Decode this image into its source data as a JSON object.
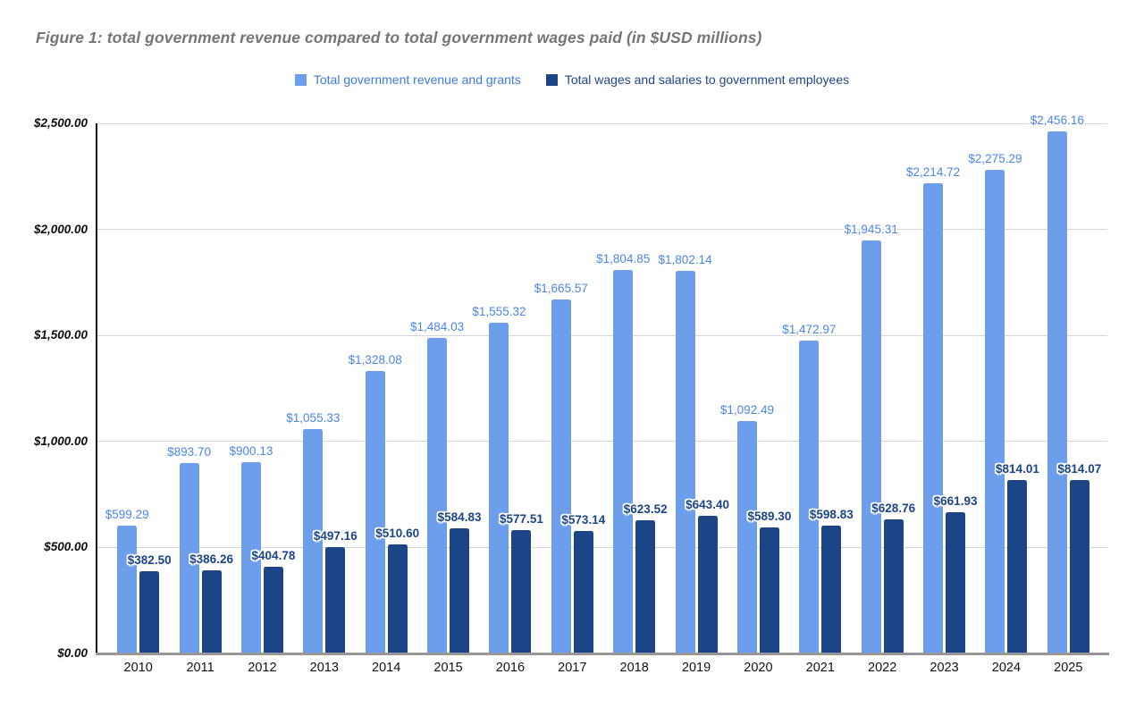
{
  "figure": {
    "title": "Figure 1: total government revenue compared to total government wages paid (in $USD millions)"
  },
  "legend": [
    {
      "label": "Total government revenue and grants",
      "swatch": "#6d9eeb",
      "text_color": "#3d7ae0"
    },
    {
      "label": "Total wages and salaries to government employees",
      "swatch": "#1c4587",
      "text_color": "#1c4587"
    }
  ],
  "colors": {
    "grid": "#d6d6d6",
    "y_axis_line": "#0d0d0d",
    "x_axis_line": "#979797",
    "title_text": "#757575",
    "axis_tick_text": "#0d0d0d"
  },
  "chart_data": {
    "type": "bar",
    "title": "Figure 1: total government revenue compared to total government wages paid (in $USD millions)",
    "xlabel": "",
    "ylabel": "",
    "grid": true,
    "legend_position": "top",
    "categories": [
      "2010",
      "2011",
      "2012",
      "2013",
      "2014",
      "2015",
      "2016",
      "2017",
      "2018",
      "2019",
      "2020",
      "2021",
      "2022",
      "2023",
      "2024",
      "2025"
    ],
    "y_axis": {
      "min": 0,
      "max": 2500,
      "step": 500,
      "tick_labels": [
        "$0.00",
        "$500.00",
        "$1,000.00",
        "$1,500.00",
        "$2,000.00",
        "$2,500.00"
      ]
    },
    "series": [
      {
        "name": "Total government revenue and grants",
        "color": "#6d9eeb",
        "label_color": "#4a86e8",
        "label_bold": false,
        "values": [
          599.29,
          893.7,
          900.13,
          1055.33,
          1328.08,
          1484.03,
          1555.32,
          1665.57,
          1804.85,
          1802.14,
          1092.49,
          1472.97,
          1945.31,
          2214.72,
          2275.29,
          2456.16
        ],
        "labels": [
          "$599.29",
          "$893.70",
          "$900.13",
          "$1,055.33",
          "$1,328.08",
          "$1,484.03",
          "$1,555.32",
          "$1,665.57",
          "$1,804.85",
          "$1,802.14",
          "$1,092.49",
          "$1,472.97",
          "$1,945.31",
          "$2,214.72",
          "$2,275.29",
          "$2,456.16"
        ]
      },
      {
        "name": "Total wages and salaries to government employees",
        "color": "#1c4587",
        "label_color": "#1c4587",
        "label_bold": true,
        "values": [
          382.5,
          386.26,
          404.78,
          497.16,
          510.6,
          584.83,
          577.51,
          573.14,
          623.52,
          643.4,
          589.3,
          598.83,
          628.76,
          661.93,
          814.01,
          814.07
        ],
        "labels": [
          "$382.50",
          "$386.26",
          "$404.78",
          "$497.16",
          "$510.60",
          "$584.83",
          "$577.51",
          "$573.14",
          "$623.52",
          "$643.40",
          "$589.30",
          "$598.83",
          "$628.76",
          "$661.93",
          "$814.01",
          "$814.07"
        ]
      }
    ]
  }
}
